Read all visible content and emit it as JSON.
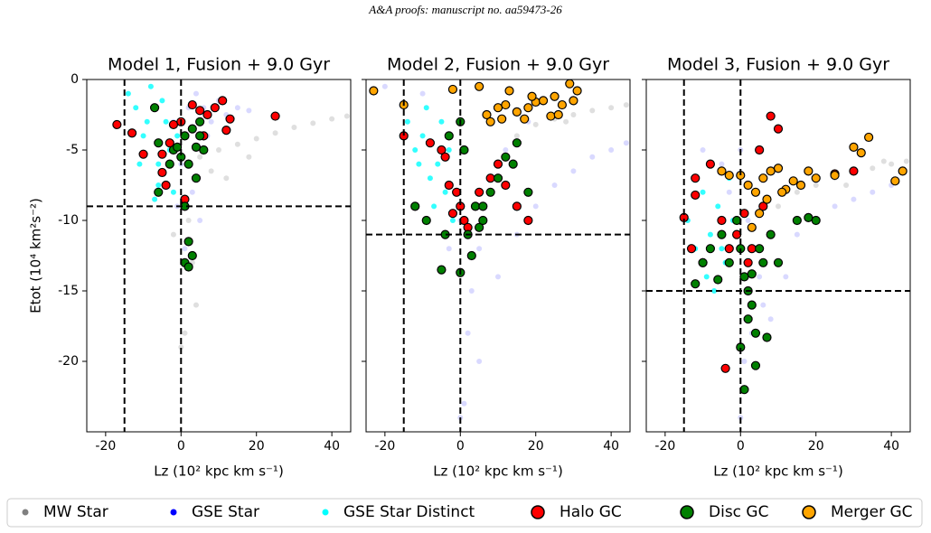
{
  "header": "A&A proofs: manuscript no. aa59473-26",
  "chart_data": [
    {
      "type": "scatter",
      "title": "Model 1, Fusion + 9.0 Gyr",
      "xlabel": "Lz (10² kpc km s⁻¹)",
      "ylabel": "Etot (10⁴ km²s⁻²)",
      "xlim": [
        -25,
        45
      ],
      "ylim": [
        -25,
        0
      ],
      "xticks": [
        -20,
        0,
        20,
        40
      ],
      "yticks": [
        -20,
        -15,
        -10,
        -5,
        0
      ],
      "vlines": [
        -15,
        0
      ],
      "hlines": [
        -9
      ],
      "series": [
        {
          "name": "MW Star",
          "color": "#808080",
          "x": [
            5,
            10,
            15,
            20,
            25,
            30,
            35,
            40,
            44,
            2,
            3,
            4,
            1,
            0,
            -2,
            8,
            12,
            18
          ],
          "values": [
            -5.5,
            -5,
            -4.6,
            -4.2,
            -3.8,
            -3.4,
            -3.1,
            -2.8,
            -2.6,
            -10,
            -13,
            -16,
            -18,
            -19,
            -11,
            -6.5,
            -7,
            -5.5
          ]
        },
        {
          "name": "GSE Star",
          "color": "#0000ff",
          "x": [
            -2,
            0,
            2,
            4,
            6,
            8,
            10,
            12,
            15,
            18,
            3,
            5,
            1,
            -1,
            7
          ],
          "values": [
            -3,
            -6,
            -2,
            -1,
            -2,
            -3,
            -1.5,
            -2.5,
            -2,
            -2.2,
            -8,
            -10,
            -12,
            -9,
            -4
          ]
        },
        {
          "name": "GSE Star Distinct",
          "color": "#00ffff",
          "x": [
            -14,
            -12,
            -10,
            -8,
            -6,
            -4,
            -2,
            -11,
            -7,
            -5,
            -3,
            -9,
            -6,
            -1
          ],
          "values": [
            -1,
            -2,
            -4,
            -0.5,
            -6,
            -3,
            -8,
            -6,
            -8.5,
            -1.5,
            -5,
            -3,
            -7.5,
            -4
          ]
        },
        {
          "name": "Halo GC",
          "color": "#ff0000",
          "edge": "#000000",
          "x": [
            -17,
            -13,
            -10,
            -5,
            -3,
            -4,
            -2,
            0,
            3,
            5,
            7,
            9,
            11,
            13,
            12,
            25,
            -5,
            1,
            6
          ],
          "values": [
            -3.2,
            -3.8,
            -5.3,
            -6.6,
            -4.5,
            -7.5,
            -3.2,
            -3,
            -1.8,
            -2.2,
            -2.5,
            -2,
            -1.5,
            -2.8,
            -3.6,
            -2.6,
            -5.3,
            -8.5,
            -4
          ]
        },
        {
          "name": "Disc GC",
          "color": "#008000",
          "edge": "#000000",
          "x": [
            -7,
            -6,
            -3,
            -2,
            -1,
            0,
            1,
            2,
            3,
            4,
            5,
            6,
            1,
            2,
            3,
            1,
            2,
            -6,
            5,
            4
          ],
          "values": [
            -2,
            -4.5,
            -6,
            -5,
            -4.8,
            -5.5,
            -4,
            -6,
            -3.5,
            -4.8,
            -4,
            -5,
            -9,
            -11.5,
            -12.5,
            -13,
            -13.3,
            -8,
            -3,
            -7
          ]
        }
      ]
    },
    {
      "type": "scatter",
      "title": "Model 2, Fusion + 9.0 Gyr",
      "xlabel": "Lz (10² kpc km s⁻¹)",
      "xlim": [
        -25,
        45
      ],
      "ylim": [
        -25,
        0
      ],
      "xticks": [
        -20,
        0,
        20,
        40
      ],
      "yticks": [
        -20,
        -15,
        -10,
        -5,
        0
      ],
      "vlines": [
        -15,
        0
      ],
      "hlines": [
        -11
      ],
      "series": [
        {
          "name": "MW Star",
          "color": "#808080",
          "x": [
            20,
            25,
            30,
            35,
            40,
            44,
            15,
            28
          ],
          "values": [
            -3.2,
            -2.8,
            -2.5,
            -2.2,
            -2,
            -1.8,
            -4,
            -3
          ]
        },
        {
          "name": "GSE Star",
          "color": "#0000ff",
          "x": [
            -20,
            -10,
            0,
            0,
            2,
            5,
            10,
            15,
            20,
            25,
            30,
            35,
            40,
            44,
            1,
            3,
            -3,
            8,
            12,
            0,
            5,
            18
          ],
          "values": [
            -0.5,
            -1,
            -3,
            -10,
            -18,
            -20,
            -14,
            -11,
            -9,
            -7.5,
            -6.5,
            -5.5,
            -5,
            -4.5,
            -23,
            -15,
            -12,
            -8,
            -5,
            -24,
            -12,
            -3
          ]
        },
        {
          "name": "GSE Star Distinct",
          "color": "#00ffff",
          "x": [
            -14,
            -12,
            -10,
            -8,
            -6,
            -4,
            -2,
            -9,
            -5,
            -3,
            -7,
            -11
          ],
          "values": [
            -3,
            -5,
            -4,
            -7,
            -6,
            -8,
            -10,
            -2,
            -3,
            -5,
            -9,
            -6
          ]
        },
        {
          "name": "Halo GC",
          "color": "#ff0000",
          "edge": "#000000",
          "x": [
            -15,
            -8,
            -5,
            -3,
            -2,
            -1,
            0,
            1,
            2,
            5,
            8,
            10,
            12,
            15,
            18,
            -4
          ],
          "values": [
            -4,
            -4.5,
            -5,
            -7.5,
            -9.5,
            -8,
            -9,
            -10,
            -10.5,
            -8,
            -7,
            -6,
            -7.5,
            -9,
            -10,
            -5.5
          ]
        },
        {
          "name": "Disc GC",
          "color": "#008000",
          "edge": "#000000",
          "x": [
            -12,
            -9,
            -5,
            -3,
            0,
            0,
            2,
            4,
            5,
            6,
            8,
            10,
            12,
            14,
            15,
            3,
            18,
            -4,
            1,
            6
          ],
          "values": [
            -9,
            -10,
            -13.5,
            -4,
            -3,
            -13.7,
            -11,
            -9,
            -10.5,
            -9,
            -8,
            -7,
            -5.5,
            -6,
            -4.5,
            -12.5,
            -8,
            -11,
            -5,
            -10
          ]
        },
        {
          "name": "Merger GC",
          "color": "#ffa500",
          "edge": "#000000",
          "x": [
            -23,
            -15,
            -2,
            5,
            7,
            10,
            12,
            15,
            18,
            20,
            22,
            25,
            27,
            30,
            29,
            13,
            17,
            24,
            8,
            11,
            19,
            26,
            31
          ],
          "values": [
            -0.8,
            -1.8,
            -0.7,
            -0.5,
            -2.5,
            -2,
            -1.8,
            -2.3,
            -2,
            -1.6,
            -1.5,
            -1.2,
            -1.8,
            -1.5,
            -0.3,
            -0.8,
            -2.8,
            -2.6,
            -3,
            -2.8,
            -1.2,
            -2.5,
            -0.8
          ]
        }
      ]
    },
    {
      "type": "scatter",
      "title": "Model 3, Fusion + 9.0 Gyr",
      "xlabel": "Lz (10² kpc km s⁻¹)",
      "xlim": [
        -25,
        45
      ],
      "ylim": [
        -25,
        0
      ],
      "xticks": [
        -20,
        0,
        20,
        40
      ],
      "yticks": [
        -20,
        -15,
        -10,
        -5,
        0
      ],
      "vlines": [
        -15,
        0
      ],
      "hlines": [
        -15
      ],
      "series": [
        {
          "name": "MW Star",
          "color": "#808080",
          "x": [
            15,
            20,
            25,
            30,
            35,
            40,
            44,
            10,
            28,
            38
          ],
          "values": [
            -8,
            -7.5,
            -7,
            -6.5,
            -6.3,
            -6,
            -5.8,
            -9,
            -7.5,
            -5.8
          ]
        },
        {
          "name": "GSE Star",
          "color": "#0000ff",
          "x": [
            -10,
            -5,
            0,
            2,
            5,
            10,
            15,
            20,
            25,
            30,
            35,
            40,
            0,
            1,
            3,
            6,
            -3,
            8,
            12
          ],
          "values": [
            -5,
            -6,
            -5,
            -10,
            -14,
            -13,
            -11,
            -10,
            -9,
            -8.5,
            -8,
            -7.5,
            -24,
            -20,
            -18,
            -16,
            -8,
            -17,
            -14
          ]
        },
        {
          "name": "GSE Star Distinct",
          "color": "#00ffff",
          "x": [
            -14,
            -12,
            -10,
            -8,
            -6,
            -4,
            -2,
            -9,
            -5,
            -3,
            -7
          ],
          "values": [
            -10,
            -12,
            -8,
            -11,
            -9,
            -13,
            -10,
            -14,
            -12,
            -7,
            -15
          ]
        },
        {
          "name": "Halo GC",
          "color": "#ff0000",
          "edge": "#000000",
          "x": [
            -15,
            -13,
            -12,
            -10,
            -8,
            -5,
            -3,
            -1,
            1,
            3,
            5,
            8,
            10,
            6,
            25,
            30,
            -12,
            -4,
            2
          ],
          "values": [
            -9.8,
            -12,
            -7,
            -13,
            -6,
            -10,
            -12,
            -11,
            -9.5,
            -12,
            -5,
            -2.6,
            -3.5,
            -9,
            -6.7,
            -6.5,
            -8.2,
            -20.5,
            -13
          ]
        },
        {
          "name": "Disc GC",
          "color": "#008000",
          "edge": "#000000",
          "x": [
            -12,
            -10,
            -8,
            -5,
            -3,
            -1,
            0,
            1,
            2,
            3,
            4,
            5,
            6,
            7,
            8,
            10,
            15,
            18,
            20,
            0,
            1,
            2,
            3,
            4,
            -6
          ],
          "values": [
            -14.5,
            -13,
            -12,
            -11,
            -13,
            -10,
            -12,
            -14,
            -15,
            -16,
            -18,
            -12,
            -13,
            -18.3,
            -11,
            -13,
            -10,
            -9.8,
            -10,
            -19,
            -22,
            -17,
            -13.8,
            -20.3,
            -14.2
          ]
        },
        {
          "name": "Merger GC",
          "color": "#ffa500",
          "edge": "#000000",
          "x": [
            -5,
            -3,
            0,
            2,
            4,
            6,
            8,
            10,
            12,
            14,
            16,
            18,
            20,
            25,
            30,
            32,
            34,
            43,
            41,
            3,
            5,
            7,
            11
          ],
          "values": [
            -6.5,
            -6.8,
            -6.8,
            -7.5,
            -8,
            -7,
            -6.5,
            -6.3,
            -7.8,
            -7.2,
            -7.5,
            -6.5,
            -7,
            -6.8,
            -4.8,
            -5.2,
            -4.1,
            -6.5,
            -7.2,
            -10.5,
            -9.5,
            -8.5,
            -8
          ]
        }
      ]
    }
  ]
}
